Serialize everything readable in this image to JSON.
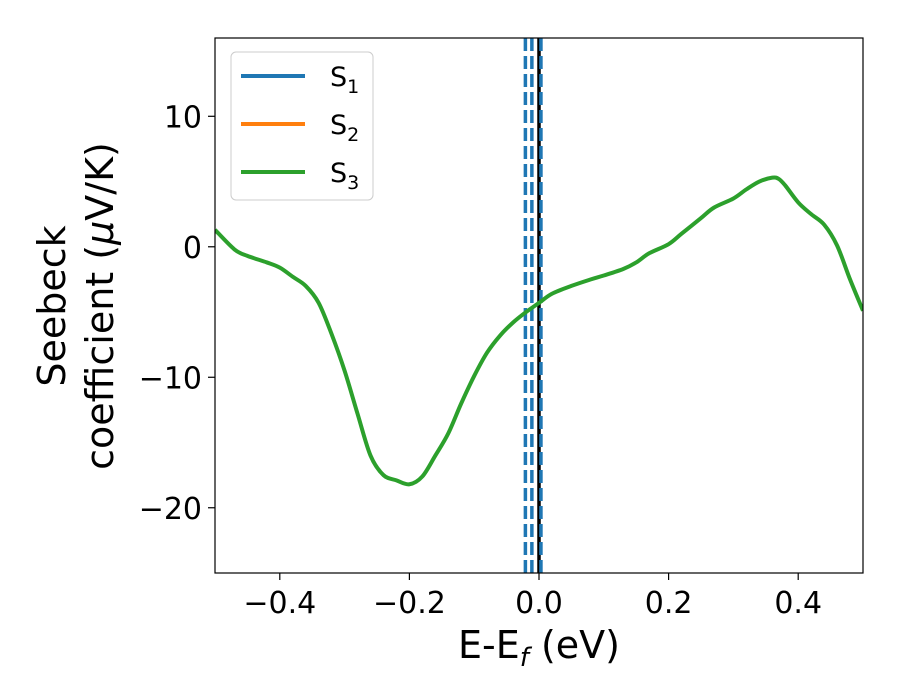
{
  "chart_data": {
    "type": "line",
    "xlabel": {
      "main": "E-E",
      "sub": "f",
      "suffix": " (eV)"
    },
    "ylabel": {
      "line1": "Seebeck",
      "line2_prefix": "coefficient  (",
      "mu": "μ",
      "line2_suffix": "V/K)"
    },
    "xlim": [
      -0.5,
      0.5
    ],
    "ylim": [
      -25,
      16
    ],
    "x_ticks": [
      -0.4,
      -0.2,
      0.0,
      0.2,
      0.4
    ],
    "x_tick_labels": [
      "−0.4",
      "−0.2",
      "0.0",
      "0.2",
      "0.4"
    ],
    "y_ticks": [
      -20,
      -10,
      0,
      10
    ],
    "y_tick_labels": [
      "−20",
      "−10",
      "0",
      "10"
    ],
    "grid": false,
    "legend": {
      "position": "top-left",
      "entries": [
        {
          "base": "S",
          "sub": "1",
          "color": "#1f77b4"
        },
        {
          "base": "S",
          "sub": "2",
          "color": "#ff7f0e"
        },
        {
          "base": "S",
          "sub": "3",
          "color": "#2ca02c"
        }
      ]
    },
    "series": [
      {
        "color": "#2ca02c",
        "x": [
          -0.5,
          -0.47,
          -0.45,
          -0.42,
          -0.4,
          -0.38,
          -0.36,
          -0.34,
          -0.32,
          -0.3,
          -0.28,
          -0.26,
          -0.24,
          -0.22,
          -0.2,
          -0.18,
          -0.16,
          -0.14,
          -0.12,
          -0.1,
          -0.08,
          -0.06,
          -0.04,
          -0.02,
          0.0,
          0.02,
          0.05,
          0.08,
          0.1,
          0.13,
          0.15,
          0.17,
          0.2,
          0.22,
          0.25,
          0.27,
          0.3,
          0.32,
          0.34,
          0.36,
          0.37,
          0.38,
          0.4,
          0.42,
          0.44,
          0.46,
          0.48,
          0.5
        ],
        "y": [
          1.3,
          -0.2,
          -0.7,
          -1.2,
          -1.6,
          -2.3,
          -3.0,
          -4.3,
          -6.7,
          -9.5,
          -12.8,
          -16.0,
          -17.5,
          -17.9,
          -18.2,
          -17.6,
          -16.0,
          -14.3,
          -12.0,
          -9.9,
          -8.1,
          -6.8,
          -5.8,
          -5.0,
          -4.3,
          -3.6,
          -3.0,
          -2.5,
          -2.2,
          -1.7,
          -1.2,
          -0.5,
          0.2,
          1.0,
          2.2,
          3.0,
          3.7,
          4.4,
          5.0,
          5.3,
          5.2,
          4.7,
          3.4,
          2.5,
          1.7,
          0.1,
          -2.5,
          -4.9
        ]
      }
    ],
    "vlines": [
      {
        "x": -0.021,
        "style": "dashed",
        "color": "#1f77b4"
      },
      {
        "x": -0.011,
        "style": "dashed",
        "color": "#1f77b4"
      },
      {
        "x": 0.0,
        "style": "solid",
        "color": "#000000"
      },
      {
        "x": 0.003,
        "style": "dashed",
        "color": "#1f77b4"
      }
    ]
  }
}
